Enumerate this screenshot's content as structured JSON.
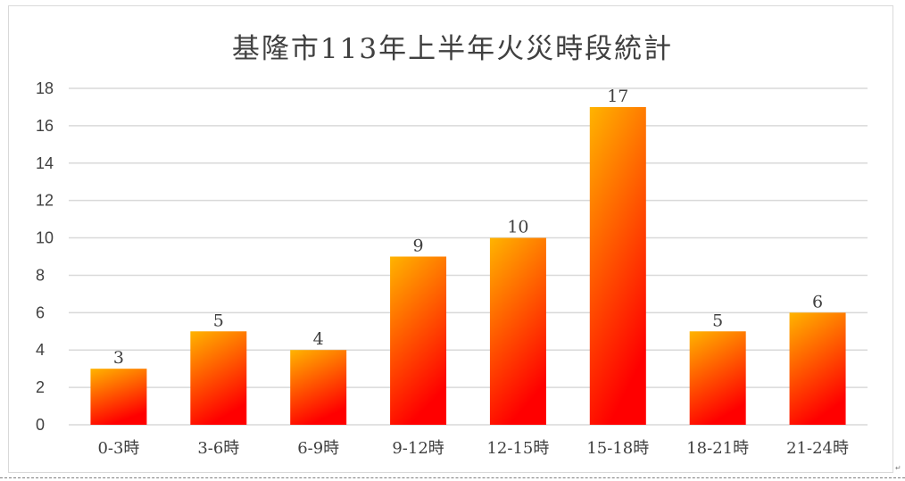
{
  "chart_data": {
    "type": "bar",
    "title": "基隆市113年上半年火災時段統計",
    "xlabel": "",
    "ylabel": "",
    "categories": [
      "0-3時",
      "3-6時",
      "6-9時",
      "9-12時",
      "12-15時",
      "15-18時",
      "18-21時",
      "21-24時"
    ],
    "values": [
      3,
      5,
      4,
      9,
      10,
      17,
      5,
      6
    ],
    "ylim": [
      0,
      18
    ],
    "yticks": [
      0,
      2,
      4,
      6,
      8,
      10,
      12,
      14,
      16,
      18
    ],
    "grid": true,
    "legend": "none",
    "data_labels": true,
    "colors": {
      "bar_top": "#FFB400",
      "bar_bottom": "#FF0000",
      "grid": "#d9d9d9",
      "text": "#404040"
    }
  }
}
